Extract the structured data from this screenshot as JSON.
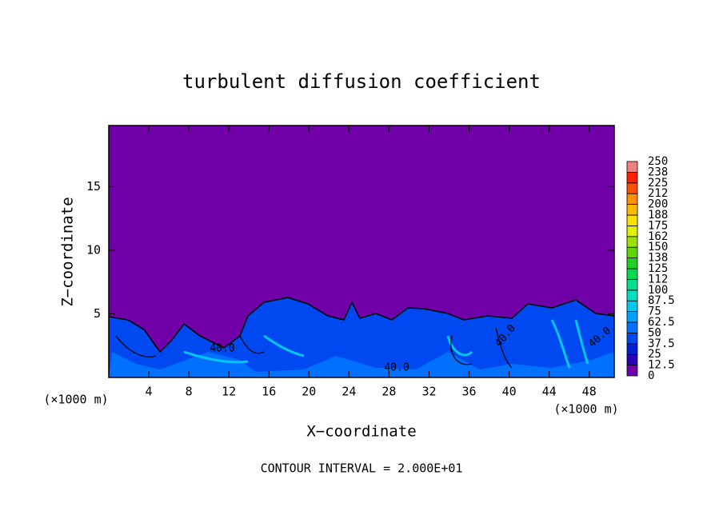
{
  "chart_data": {
    "type": "contour",
    "title": "turbulent diffusion coefficient",
    "xlabel": "X−coordinate",
    "ylabel": "Z−coordinate",
    "x_unit": "(×1000 m)",
    "xlim": [
      0,
      50.5
    ],
    "ylim": [
      0,
      19.8
    ],
    "xticks": [
      4,
      8,
      12,
      16,
      20,
      24,
      28,
      32,
      36,
      40,
      44,
      48
    ],
    "yticks": [
      5,
      10,
      15
    ],
    "contour_interval": "CONTOUR INTERVAL = 2.000E+01",
    "contour_labels": [
      "40.0",
      "40.0",
      "40.0",
      "40.0"
    ],
    "colorbar": {
      "levels": [
        0,
        12.5,
        25,
        37.5,
        50,
        62.5,
        75,
        87.5,
        100,
        112,
        125,
        138,
        150,
        162,
        175,
        188,
        200,
        212,
        225,
        238,
        250
      ],
      "colors": [
        "#7000a8",
        "#2800b8",
        "#0020d8",
        "#0048f0",
        "#0070ff",
        "#00a0ff",
        "#00c8f0",
        "#00e0c0",
        "#00e090",
        "#00d850",
        "#20d020",
        "#60d800",
        "#a0e000",
        "#e0f000",
        "#ffe000",
        "#ffb800",
        "#ff9000",
        "#ff5000",
        "#ff2000",
        "#f08080"
      ]
    }
  }
}
